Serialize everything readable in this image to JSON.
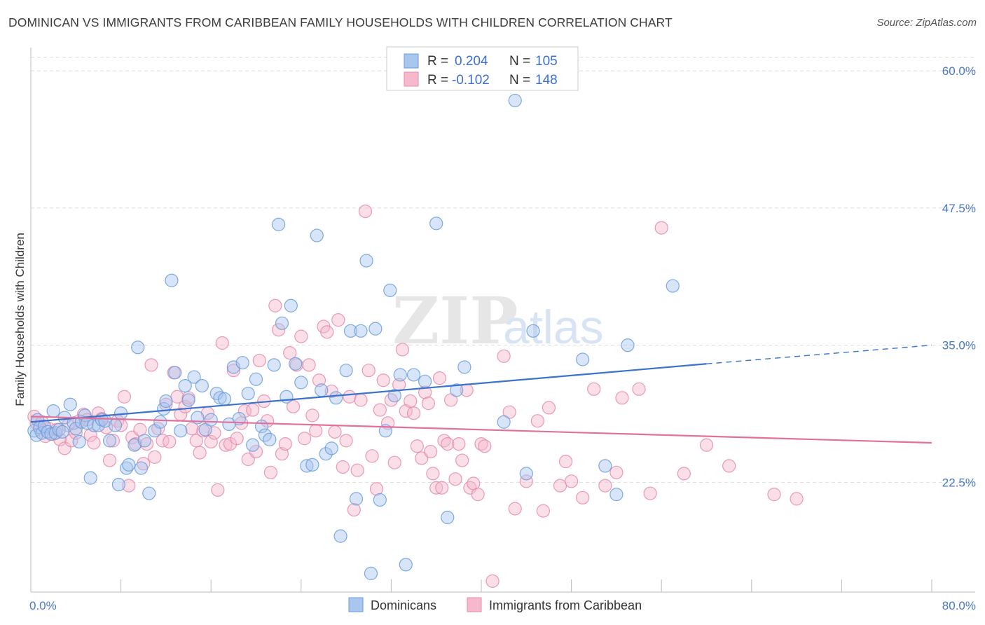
{
  "title": "DOMINICAN VS IMMIGRANTS FROM CARIBBEAN FAMILY HOUSEHOLDS WITH CHILDREN CORRELATION CHART",
  "source": "Source: ZipAtlas.com",
  "watermark": {
    "zip": "ZIP",
    "atlas": "atlas"
  },
  "chart_data": {
    "type": "scatter",
    "xlabel": "",
    "ylabel": "Family Households with Children",
    "xlim": [
      0,
      80
    ],
    "ylim": [
      12.5,
      62.5
    ],
    "x_tick_labels": [
      {
        "value": 0,
        "label": "0.0%"
      },
      {
        "value": 80,
        "label": "80.0%"
      }
    ],
    "y_tick_labels": [
      {
        "value": 22.5,
        "label": "22.5%"
      },
      {
        "value": 35.0,
        "label": "35.0%"
      },
      {
        "value": 47.5,
        "label": "47.5%"
      },
      {
        "value": 60.0,
        "label": "60.0%"
      }
    ],
    "grid": "horizontal dashed",
    "legend_placement": "top-center",
    "colors": {
      "blue_fill": "#a9c6ef",
      "blue_stroke": "#6a9bdc",
      "blue_line": "#3a72cc",
      "pink_fill": "#f5b8cc",
      "pink_stroke": "#e68aa8",
      "pink_line": "#e2709a",
      "r_value_text": "#3a6fd0"
    },
    "stats_legend": [
      {
        "r_label": "R =",
        "r_value": "0.204",
        "n_label": "N =",
        "n_value": "105"
      },
      {
        "r_label": "R =",
        "r_value": "-0.102",
        "n_label": "N =",
        "n_value": "148"
      }
    ],
    "series": [
      {
        "name": "Dominicans",
        "trend": {
          "x0": 0,
          "y0": 28.0,
          "x1": 60,
          "y1": 33.3,
          "dash_to_x": 80,
          "dash_to_y": 35.0
        },
        "points": [
          [
            0.3,
            27.2
          ],
          [
            0.5,
            26.8
          ],
          [
            0.6,
            28.2
          ],
          [
            0.8,
            27.5
          ],
          [
            1.0,
            27.0
          ],
          [
            1.2,
            27.6
          ],
          [
            1.5,
            27.1
          ],
          [
            1.8,
            26.9
          ],
          [
            2.0,
            29.0
          ],
          [
            2.2,
            27.0
          ],
          [
            2.5,
            27.3
          ],
          [
            2.8,
            27.1
          ],
          [
            3.0,
            28.4
          ],
          [
            3.5,
            29.6
          ],
          [
            3.8,
            27.9
          ],
          [
            4.0,
            27.4
          ],
          [
            4.3,
            26.2
          ],
          [
            4.5,
            28.0
          ],
          [
            4.8,
            28.6
          ],
          [
            5.0,
            27.9
          ],
          [
            5.3,
            22.9
          ],
          [
            5.6,
            27.7
          ],
          [
            6.0,
            27.7
          ],
          [
            6.3,
            28.2
          ],
          [
            6.6,
            28.1
          ],
          [
            7.0,
            26.3
          ],
          [
            7.5,
            27.7
          ],
          [
            7.8,
            22.3
          ],
          [
            8.0,
            28.8
          ],
          [
            8.5,
            23.8
          ],
          [
            8.7,
            24.1
          ],
          [
            9.2,
            25.9
          ],
          [
            9.5,
            34.8
          ],
          [
            9.8,
            23.8
          ],
          [
            10.1,
            26.3
          ],
          [
            10.5,
            21.5
          ],
          [
            11.0,
            27.2
          ],
          [
            11.5,
            28.0
          ],
          [
            11.8,
            29.2
          ],
          [
            12.0,
            29.9
          ],
          [
            12.5,
            40.9
          ],
          [
            12.8,
            32.5
          ],
          [
            13.3,
            27.2
          ],
          [
            13.7,
            31.3
          ],
          [
            14.0,
            30.0
          ],
          [
            14.5,
            32.1
          ],
          [
            14.8,
            28.4
          ],
          [
            15.2,
            31.3
          ],
          [
            15.5,
            27.3
          ],
          [
            16.0,
            28.2
          ],
          [
            16.5,
            30.6
          ],
          [
            16.8,
            30.2
          ],
          [
            17.2,
            30.1
          ],
          [
            17.6,
            27.8
          ],
          [
            18.0,
            33.0
          ],
          [
            18.5,
            28.3
          ],
          [
            18.8,
            33.4
          ],
          [
            19.3,
            30.6
          ],
          [
            19.7,
            25.9
          ],
          [
            20.0,
            31.9
          ],
          [
            20.5,
            27.6
          ],
          [
            20.8,
            26.8
          ],
          [
            21.2,
            26.4
          ],
          [
            21.6,
            33.2
          ],
          [
            22.0,
            46.0
          ],
          [
            22.3,
            37.0
          ],
          [
            22.7,
            30.3
          ],
          [
            23.1,
            38.6
          ],
          [
            23.5,
            33.3
          ],
          [
            24.0,
            31.6
          ],
          [
            24.5,
            24.0
          ],
          [
            25.0,
            24.1
          ],
          [
            25.4,
            45.0
          ],
          [
            25.8,
            30.9
          ],
          [
            26.2,
            25.1
          ],
          [
            26.7,
            25.6
          ],
          [
            27.1,
            30.2
          ],
          [
            27.5,
            17.6
          ],
          [
            28.0,
            32.7
          ],
          [
            28.4,
            36.3
          ],
          [
            28.9,
            21.0
          ],
          [
            29.3,
            36.3
          ],
          [
            29.8,
            42.7
          ],
          [
            30.2,
            14.2
          ],
          [
            30.6,
            36.5
          ],
          [
            31.0,
            20.9
          ],
          [
            31.5,
            27.2
          ],
          [
            31.9,
            40.0
          ],
          [
            32.3,
            30.4
          ],
          [
            32.8,
            32.3
          ],
          [
            33.3,
            15.0
          ],
          [
            34.0,
            32.3
          ],
          [
            35.0,
            31.7
          ],
          [
            36.0,
            46.1
          ],
          [
            37.0,
            19.3
          ],
          [
            37.8,
            30.9
          ],
          [
            38.5,
            33.0
          ],
          [
            42.0,
            28.0
          ],
          [
            44.0,
            23.3
          ],
          [
            44.6,
            36.3
          ],
          [
            49.0,
            33.7
          ],
          [
            51.0,
            24.0
          ],
          [
            52.0,
            21.4
          ],
          [
            53.0,
            35.0
          ],
          [
            57.0,
            40.4
          ],
          [
            43.0,
            57.3
          ]
        ]
      },
      {
        "name": "Immigrants from Caribbean",
        "trend": {
          "x0": 0,
          "y0": 28.5,
          "x1": 80,
          "y1": 26.1
        },
        "points": [
          [
            0.3,
            28.5
          ],
          [
            0.5,
            27.9
          ],
          [
            0.8,
            27.3
          ],
          [
            1.0,
            28.0
          ],
          [
            1.3,
            26.7
          ],
          [
            1.6,
            27.4
          ],
          [
            2.0,
            26.9
          ],
          [
            2.3,
            27.3
          ],
          [
            2.6,
            26.4
          ],
          [
            3.0,
            25.6
          ],
          [
            3.3,
            27.7
          ],
          [
            3.6,
            26.3
          ],
          [
            4.0,
            27.0
          ],
          [
            4.3,
            28.1
          ],
          [
            4.7,
            28.7
          ],
          [
            5.0,
            28.2
          ],
          [
            5.3,
            26.8
          ],
          [
            5.6,
            26.1
          ],
          [
            6.0,
            28.8
          ],
          [
            6.3,
            28.3
          ],
          [
            6.7,
            27.5
          ],
          [
            7.0,
            24.5
          ],
          [
            7.3,
            26.3
          ],
          [
            7.7,
            28.1
          ],
          [
            8.0,
            27.7
          ],
          [
            8.3,
            30.3
          ],
          [
            8.7,
            22.2
          ],
          [
            9.0,
            26.6
          ],
          [
            9.3,
            26.0
          ],
          [
            9.7,
            27.3
          ],
          [
            10.0,
            24.2
          ],
          [
            10.3,
            26.0
          ],
          [
            10.7,
            33.2
          ],
          [
            11.0,
            24.8
          ],
          [
            11.3,
            27.4
          ],
          [
            11.7,
            26.3
          ],
          [
            12.0,
            29.6
          ],
          [
            12.3,
            26.2
          ],
          [
            12.7,
            32.5
          ],
          [
            13.0,
            30.3
          ],
          [
            13.3,
            28.7
          ],
          [
            13.7,
            29.4
          ],
          [
            14.0,
            30.2
          ],
          [
            14.3,
            27.4
          ],
          [
            14.7,
            26.3
          ],
          [
            15.0,
            25.2
          ],
          [
            15.3,
            27.2
          ],
          [
            15.7,
            28.8
          ],
          [
            16.0,
            26.2
          ],
          [
            16.3,
            27.0
          ],
          [
            16.6,
            21.8
          ],
          [
            17.0,
            35.2
          ],
          [
            17.3,
            25.9
          ],
          [
            17.7,
            26.0
          ],
          [
            18.0,
            32.7
          ],
          [
            18.3,
            26.5
          ],
          [
            18.7,
            27.9
          ],
          [
            19.0,
            29.0
          ],
          [
            19.3,
            24.6
          ],
          [
            19.7,
            29.1
          ],
          [
            20.0,
            25.3
          ],
          [
            20.3,
            33.6
          ],
          [
            20.7,
            29.9
          ],
          [
            21.0,
            28.1
          ],
          [
            21.3,
            23.4
          ],
          [
            21.7,
            38.6
          ],
          [
            22.0,
            36.4
          ],
          [
            22.3,
            25.1
          ],
          [
            22.6,
            26.0
          ],
          [
            23.0,
            34.3
          ],
          [
            23.3,
            29.4
          ],
          [
            23.6,
            33.2
          ],
          [
            24.0,
            35.8
          ],
          [
            24.3,
            26.5
          ],
          [
            24.7,
            33.2
          ],
          [
            25.0,
            28.6
          ],
          [
            25.3,
            27.2
          ],
          [
            25.6,
            31.8
          ],
          [
            26.0,
            36.7
          ],
          [
            26.3,
            36.2
          ],
          [
            26.7,
            30.8
          ],
          [
            27.0,
            27.1
          ],
          [
            27.3,
            37.3
          ],
          [
            27.7,
            23.9
          ],
          [
            28.0,
            26.3
          ],
          [
            28.3,
            30.3
          ],
          [
            28.7,
            20.0
          ],
          [
            29.0,
            23.6
          ],
          [
            29.3,
            30.0
          ],
          [
            29.7,
            47.2
          ],
          [
            30.0,
            32.7
          ],
          [
            30.3,
            24.9
          ],
          [
            30.7,
            21.9
          ],
          [
            31.0,
            29.1
          ],
          [
            31.3,
            31.8
          ],
          [
            31.7,
            27.9
          ],
          [
            32.0,
            30.0
          ],
          [
            32.3,
            24.3
          ],
          [
            32.7,
            31.4
          ],
          [
            33.0,
            34.6
          ],
          [
            33.3,
            29.0
          ],
          [
            33.7,
            29.9
          ],
          [
            34.0,
            28.8
          ],
          [
            34.3,
            25.8
          ],
          [
            34.7,
            24.7
          ],
          [
            35.0,
            30.7
          ],
          [
            35.3,
            29.7
          ],
          [
            35.7,
            23.3
          ],
          [
            36.0,
            22.0
          ],
          [
            36.3,
            32.0
          ],
          [
            36.7,
            26.3
          ],
          [
            37.0,
            26.0
          ],
          [
            37.3,
            30.0
          ],
          [
            37.7,
            22.8
          ],
          [
            38.0,
            26.0
          ],
          [
            38.3,
            24.5
          ],
          [
            38.7,
            30.9
          ],
          [
            39.0,
            22.0
          ],
          [
            39.3,
            22.4
          ],
          [
            39.7,
            21.4
          ],
          [
            40.0,
            26.0
          ],
          [
            40.3,
            25.8
          ],
          [
            41.0,
            13.5
          ],
          [
            42.0,
            34.0
          ],
          [
            42.5,
            28.9
          ],
          [
            43.0,
            20.1
          ],
          [
            44.0,
            22.6
          ],
          [
            45.0,
            28.1
          ],
          [
            46.0,
            29.3
          ],
          [
            47.0,
            22.2
          ],
          [
            48.0,
            22.6
          ],
          [
            49.0,
            21.1
          ],
          [
            50.0,
            31.0
          ],
          [
            51.0,
            22.2
          ],
          [
            52.0,
            23.4
          ],
          [
            56.0,
            45.7
          ],
          [
            58.0,
            23.3
          ],
          [
            60.0,
            25.9
          ],
          [
            62.0,
            24.0
          ],
          [
            66.0,
            21.4
          ],
          [
            68.0,
            21.0
          ],
          [
            52.5,
            30.2
          ],
          [
            54.0,
            31.0
          ],
          [
            45.5,
            19.9
          ],
          [
            47.5,
            24.4
          ],
          [
            35.5,
            25.3
          ],
          [
            36.5,
            22.0
          ],
          [
            55.0,
            21.5
          ]
        ]
      }
    ]
  }
}
